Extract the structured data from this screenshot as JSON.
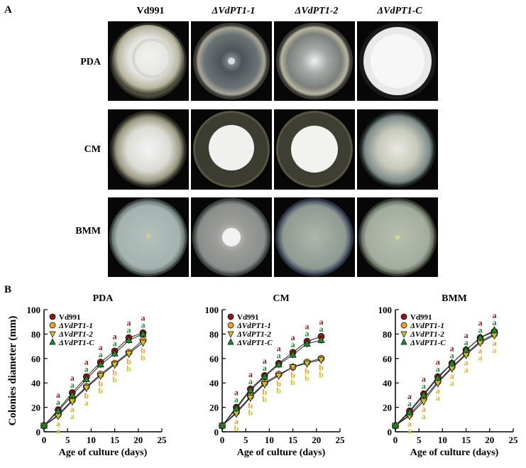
{
  "figure": {
    "panel_a_label": "A",
    "panel_b_label": "B",
    "strains": [
      "Vd991",
      "ΔVdPT1-1",
      "ΔVdPT1-2",
      "ΔVdPT1-C"
    ],
    "media": [
      "PDA",
      "CM",
      "BMM"
    ]
  },
  "chart_data": [
    {
      "type": "line",
      "title": "PDA",
      "xlabel": "Age of culture (days)",
      "ylabel": "Colonies diameter (mm)",
      "xlim": [
        0,
        25
      ],
      "ylim": [
        0,
        100
      ],
      "xticks": [
        0,
        5,
        10,
        15,
        20,
        25
      ],
      "yticks": [
        0,
        20,
        40,
        60,
        80,
        100
      ],
      "legend_position": "top-left",
      "x": [
        0,
        3,
        6,
        9,
        12,
        15,
        18,
        21
      ],
      "series": [
        {
          "name": "Vd991",
          "color": "#8b1a1a",
          "marker": "circle",
          "values": [
            5,
            18,
            32,
            45,
            57,
            66,
            77,
            81
          ]
        },
        {
          "name": "ΔVdPT1-1",
          "color": "#f39c2b",
          "marker": "circle",
          "values": [
            5,
            14,
            26,
            37,
            47,
            56,
            65,
            75
          ]
        },
        {
          "name": "ΔVdPT1-2",
          "color": "#c9c22a",
          "marker": "triangle-down",
          "values": [
            5,
            13,
            25,
            36,
            46,
            55,
            64,
            73
          ]
        },
        {
          "name": "ΔVdPT1-C",
          "color": "#1e8a2e",
          "marker": "triangle-up",
          "values": [
            5,
            17,
            30,
            43,
            55,
            64,
            75,
            80
          ]
        }
      ],
      "annotations": [
        {
          "x": 3,
          "letters": [
            [
              "a",
              "a",
              "a",
              "a"
            ]
          ]
        },
        {
          "x": 6,
          "letters": [
            [
              "a",
              "a",
              "a",
              "a"
            ]
          ]
        },
        {
          "x": 9,
          "letters": [
            [
              "a",
              "a",
              "b",
              "a"
            ]
          ]
        },
        {
          "x": 12,
          "letters": [
            [
              "a",
              "a",
              "b",
              "b"
            ]
          ]
        },
        {
          "x": 15,
          "letters": [
            [
              "a",
              "a",
              "b",
              "b"
            ]
          ]
        },
        {
          "x": 18,
          "letters": [
            [
              "a",
              "a",
              "b",
              "b"
            ]
          ]
        },
        {
          "x": 21,
          "letters": [
            [
              "a",
              "a",
              "b",
              "b"
            ]
          ]
        }
      ]
    },
    {
      "type": "line",
      "title": "CM",
      "xlabel": "Age of culture (days)",
      "ylabel": "",
      "xlim": [
        0,
        25
      ],
      "ylim": [
        0,
        100
      ],
      "xticks": [
        0,
        5,
        10,
        15,
        20,
        25
      ],
      "yticks": [
        0,
        20,
        40,
        60,
        80,
        100
      ],
      "legend_position": "top-left",
      "x": [
        0,
        3,
        6,
        9,
        12,
        15,
        18,
        21
      ],
      "series": [
        {
          "name": "Vd991",
          "color": "#8b1a1a",
          "marker": "circle",
          "values": [
            5,
            20,
            35,
            46,
            56,
            65,
            74,
            78
          ]
        },
        {
          "name": "ΔVdPT1-1",
          "color": "#f39c2b",
          "marker": "circle",
          "values": [
            5,
            16,
            29,
            40,
            47,
            53,
            57,
            60
          ]
        },
        {
          "name": "ΔVdPT1-2",
          "color": "#c9c22a",
          "marker": "triangle-down",
          "values": [
            5,
            15,
            28,
            39,
            46,
            53,
            56,
            59
          ]
        },
        {
          "name": "ΔVdPT1-C",
          "color": "#1e8a2e",
          "marker": "triangle-up",
          "values": [
            5,
            19,
            34,
            45,
            55,
            63,
            72,
            75
          ]
        }
      ],
      "annotations": [
        {
          "x": 3,
          "letters": [
            [
              "a",
              "a",
              "a",
              "b"
            ]
          ]
        },
        {
          "x": 6,
          "letters": [
            [
              "a",
              "a",
              "b",
              "b"
            ]
          ]
        },
        {
          "x": 9,
          "letters": [
            [
              "a",
              "a",
              "b",
              "b"
            ]
          ]
        },
        {
          "x": 12,
          "letters": [
            [
              "a",
              "a",
              "b",
              "b"
            ]
          ]
        },
        {
          "x": 15,
          "letters": [
            [
              "a",
              "a",
              "b",
              "b"
            ]
          ]
        },
        {
          "x": 18,
          "letters": [
            [
              "a",
              "a",
              "b",
              "b"
            ]
          ]
        },
        {
          "x": 21,
          "letters": [
            [
              "a",
              "a",
              "b",
              "b"
            ]
          ]
        }
      ]
    },
    {
      "type": "line",
      "title": "BMM",
      "xlabel": "Age of culture (days)",
      "ylabel": "",
      "xlim": [
        0,
        25
      ],
      "ylim": [
        0,
        100
      ],
      "xticks": [
        0,
        5,
        10,
        15,
        20,
        25
      ],
      "yticks": [
        0,
        20,
        40,
        60,
        80,
        100
      ],
      "legend_position": "top-left",
      "x": [
        0,
        3,
        6,
        9,
        12,
        15,
        18,
        21
      ],
      "series": [
        {
          "name": "Vd991",
          "color": "#8b1a1a",
          "marker": "circle",
          "values": [
            5,
            17,
            31,
            45,
            56,
            67,
            77,
            82
          ]
        },
        {
          "name": "ΔVdPT1-1",
          "color": "#f39c2b",
          "marker": "circle",
          "values": [
            5,
            14,
            27,
            41,
            53,
            64,
            74,
            80
          ]
        },
        {
          "name": "ΔVdPT1-2",
          "color": "#c9c22a",
          "marker": "triangle-down",
          "values": [
            5,
            13,
            25,
            40,
            52,
            63,
            73,
            79
          ]
        },
        {
          "name": "ΔVdPT1-C",
          "color": "#1e8a2e",
          "marker": "triangle-up",
          "values": [
            5,
            16,
            30,
            44,
            56,
            67,
            77,
            83
          ]
        }
      ],
      "annotations": [
        {
          "x": 3,
          "letters": [
            [
              "a",
              "a",
              "a",
              "a"
            ]
          ]
        },
        {
          "x": 6,
          "letters": [
            [
              "a",
              "a",
              "a",
              "a"
            ]
          ]
        },
        {
          "x": 9,
          "letters": [
            [
              "a",
              "a",
              "a",
              "a"
            ]
          ]
        },
        {
          "x": 12,
          "letters": [
            [
              "a",
              "a",
              "a",
              "a"
            ]
          ]
        },
        {
          "x": 15,
          "letters": [
            [
              "a",
              "a",
              "a",
              "a"
            ]
          ]
        },
        {
          "x": 18,
          "letters": [
            [
              "a",
              "a",
              "a",
              "a"
            ]
          ]
        },
        {
          "x": 21,
          "letters": [
            [
              "a",
              "a",
              "a",
              "a"
            ]
          ]
        }
      ]
    }
  ]
}
